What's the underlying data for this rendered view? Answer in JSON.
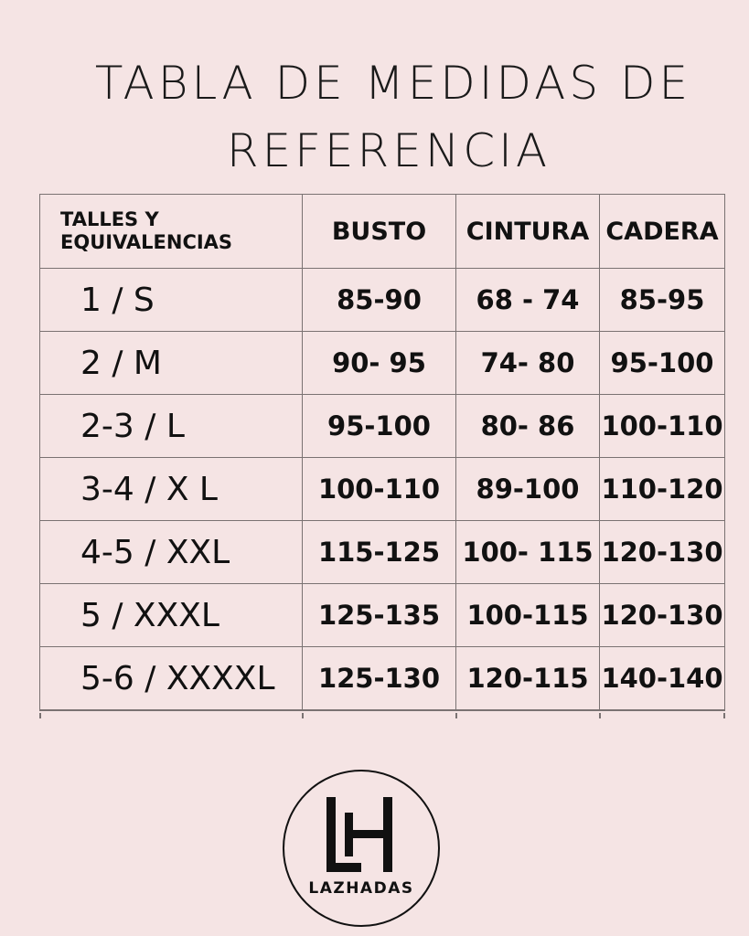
{
  "title": {
    "line1": "TABLA DE MEDIDAS DE",
    "line2": "REFERENCIA"
  },
  "table": {
    "headers": {
      "size_line1": "TALLES Y",
      "size_line2": "EQUIVALENCIAS",
      "busto": "BUSTO",
      "cintura": "CINTURA",
      "cadera": "CADERA"
    },
    "rows": [
      {
        "size": "1 / S",
        "busto": "85-90",
        "cintura": "68 - 74",
        "cadera": "85-95"
      },
      {
        "size": "2 / M",
        "busto": "90- 95",
        "cintura": "74- 80",
        "cadera": "95-100"
      },
      {
        "size": "2-3 / L",
        "busto": "95-100",
        "cintura": "80- 86",
        "cadera": "100-110"
      },
      {
        "size": "3-4 / X L",
        "busto": "100-110",
        "cintura": "89-100",
        "cadera": "110-120"
      },
      {
        "size": "4-5 / XXL",
        "busto": "115-125",
        "cintura": "100- 115",
        "cadera": "120-130"
      },
      {
        "size": "5 / XXXL",
        "busto": "125-135",
        "cintura": "100-115",
        "cadera": "120-130"
      },
      {
        "size": "5-6 / XXXXL",
        "busto": "125-130",
        "cintura": "120-115",
        "cadera": "140-140"
      }
    ]
  },
  "logo": {
    "monogram": "LH",
    "brand": "LAZHADAS"
  }
}
